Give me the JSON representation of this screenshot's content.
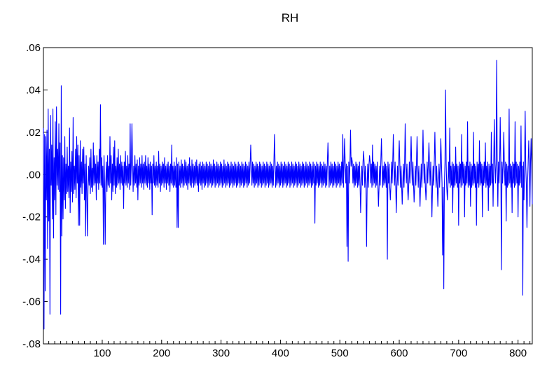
{
  "chart_data": {
    "type": "line",
    "title": "RH",
    "xlabel": "",
    "ylabel": "",
    "xlim": [
      1,
      824
    ],
    "ylim": [
      -0.08,
      0.06
    ],
    "grid": false,
    "legend": "none",
    "line_color": "#0000FF",
    "x_ticks": [
      100,
      200,
      300,
      400,
      500,
      600,
      700,
      800
    ],
    "x_tick_labels": [
      "100",
      "200",
      "300",
      "400",
      "500",
      "600",
      "700",
      "800"
    ],
    "y_ticks": [
      0.06,
      0.04,
      0.02,
      0.0,
      -0.02,
      -0.04,
      -0.06,
      -0.08
    ],
    "y_tick_labels": [
      ".06",
      ".04",
      ".02",
      ".00",
      "-.02",
      "-.04",
      "-.06",
      "-.08"
    ],
    "series": [
      {
        "x_start": 1,
        "x_step": 1,
        "values": [
          0.022,
          -0.073,
          0.019,
          -0.055,
          0.018,
          -0.012,
          0.021,
          -0.035,
          0.031,
          -0.022,
          0.012,
          -0.066,
          0.028,
          -0.005,
          0.014,
          -0.021,
          0.031,
          -0.03,
          0.008,
          -0.012,
          0.025,
          -0.019,
          0.032,
          -0.005,
          0.012,
          -0.007,
          0.024,
          -0.008,
          0.015,
          -0.066,
          0.042,
          -0.029,
          0.009,
          -0.021,
          0.008,
          -0.012,
          0.018,
          -0.016,
          0.005,
          -0.009,
          0.013,
          -0.008,
          0.004,
          -0.011,
          0.022,
          -0.018,
          0.006,
          -0.008,
          0.011,
          -0.013,
          0.027,
          -0.009,
          0.004,
          -0.007,
          0.012,
          -0.011,
          0.018,
          -0.004,
          0.014,
          -0.012,
          0.009,
          -0.024,
          0.016,
          -0.006,
          0.006,
          -0.009,
          0.012,
          -0.004,
          0.013,
          -0.012,
          0.005,
          -0.029,
          0.009,
          -0.008,
          0.012,
          -0.007,
          0.004,
          -0.005,
          0.008,
          -0.009,
          0.012,
          -0.006,
          0.003,
          -0.008,
          0.015,
          -0.005,
          0.009,
          -0.004,
          0.005,
          -0.012,
          0.009,
          -0.004,
          0.006,
          -0.007,
          0.012,
          -0.004,
          0.033,
          -0.005,
          0.008,
          -0.006,
          0.004,
          -0.033,
          0.009,
          -0.005,
          0.012,
          -0.004,
          0.006,
          -0.008,
          0.009,
          -0.005,
          0.004,
          -0.006,
          0.018,
          -0.004,
          0.009,
          -0.012,
          0.005,
          -0.008,
          0.013,
          -0.005,
          0.016,
          -0.009,
          0.004,
          -0.006,
          0.008,
          -0.005,
          0.012,
          -0.004,
          0.005,
          -0.007,
          0.009,
          -0.004,
          0.006,
          -0.005,
          0.004,
          -0.016,
          0.006,
          -0.004,
          0.011,
          -0.005,
          0.004,
          -0.006,
          0.009,
          -0.004,
          0.005,
          -0.007,
          0.024,
          -0.005,
          0.005,
          -0.004,
          0.006,
          -0.008,
          0.004,
          -0.005,
          0.009,
          -0.004,
          0.005,
          -0.006,
          0.007,
          -0.012,
          0.004,
          -0.005,
          0.008,
          -0.004,
          0.005,
          -0.006,
          0.009,
          -0.004,
          0.005,
          -0.007,
          0.006,
          -0.004,
          0.009,
          -0.005,
          0.004,
          -0.006,
          0.008,
          -0.004,
          0.005,
          -0.007,
          0.006,
          -0.004,
          0.004,
          -0.019,
          0.005,
          -0.004,
          0.009,
          -0.005,
          0.004,
          -0.006,
          0.006,
          -0.005,
          0.004,
          -0.006,
          0.011,
          -0.004,
          0.005,
          -0.008,
          0.004,
          -0.005,
          0.006,
          -0.004,
          0.005,
          -0.006,
          0.008,
          -0.004,
          0.004,
          -0.007,
          0.005,
          -0.004,
          0.006,
          -0.005,
          0.004,
          -0.008,
          0.005,
          -0.004,
          0.014,
          -0.005,
          0.004,
          -0.006,
          0.006,
          -0.005,
          0.004,
          -0.006,
          0.008,
          -0.025,
          0.005,
          -0.004,
          0.006,
          -0.005,
          0.004,
          -0.006,
          0.007,
          -0.004,
          0.005,
          -0.006,
          0.004,
          -0.005,
          0.007,
          -0.004,
          0.006,
          -0.005,
          0.004,
          -0.007,
          0.005,
          -0.004,
          0.008,
          -0.005,
          0.004,
          -0.006,
          0.007,
          -0.004,
          0.005,
          -0.006,
          0.004,
          -0.005,
          0.006,
          -0.004,
          0.007,
          -0.005,
          0.004,
          -0.008,
          0.005,
          -0.004,
          0.006,
          -0.005,
          0.004,
          -0.007,
          0.006,
          -0.004,
          0.005,
          -0.006,
          0.004,
          -0.005,
          0.006,
          -0.004,
          0.005,
          -0.006,
          0.004,
          -0.005,
          0.006,
          -0.004,
          0.005,
          -0.006,
          0.004,
          -0.005,
          0.007,
          -0.004,
          0.005,
          -0.006,
          0.004,
          -0.005,
          0.006,
          -0.004,
          0.005,
          -0.006,
          0.004,
          -0.005,
          0.006,
          -0.004,
          0.005,
          -0.006,
          0.004,
          -0.005,
          0.007,
          -0.004,
          0.005,
          -0.006,
          0.004,
          -0.005,
          0.006,
          -0.004,
          0.005,
          -0.006,
          0.004,
          -0.005,
          0.006,
          -0.004,
          0.005,
          -0.006,
          0.004,
          -0.005,
          0.006,
          -0.004,
          0.005,
          -0.006,
          0.004,
          -0.005,
          0.006,
          -0.004,
          0.005,
          -0.006,
          0.004,
          -0.005,
          0.006,
          -0.004,
          0.005,
          -0.006,
          0.004,
          -0.005,
          0.006,
          -0.004,
          0.005,
          -0.006,
          0.004,
          -0.005,
          0.006,
          -0.004,
          0.005,
          -0.006,
          0.004,
          -0.005,
          0.006,
          -0.004,
          0.005,
          -0.006,
          0.004,
          -0.005,
          0.006,
          -0.004,
          0.005,
          -0.006,
          0.004,
          -0.005,
          0.006,
          -0.004,
          0.005,
          -0.006,
          0.004,
          -0.005,
          0.006,
          -0.004,
          0.005,
          -0.006,
          0.004,
          -0.005,
          0.006,
          -0.004,
          0.005,
          -0.006,
          0.004,
          -0.005,
          0.006,
          -0.004,
          0.005,
          -0.006,
          0.004,
          -0.005,
          0.006,
          -0.004,
          0.005,
          -0.006,
          0.004,
          -0.005,
          0.006,
          -0.004,
          0.005,
          -0.006,
          0.004,
          -0.005,
          0.006,
          -0.004,
          0.005,
          -0.006,
          0.004,
          -0.005,
          0.006,
          -0.004,
          0.005,
          -0.006,
          0.004,
          -0.005,
          0.006,
          -0.004,
          0.005,
          -0.006,
          0.004,
          -0.005,
          0.006,
          -0.004,
          0.005,
          -0.006,
          0.004,
          -0.005,
          0.006,
          -0.004,
          0.005,
          -0.006,
          0.004,
          -0.005,
          0.006,
          -0.004,
          0.005,
          -0.006,
          0.004,
          -0.005,
          0.006,
          -0.004,
          0.005,
          -0.006,
          0.004,
          -0.005,
          0.006,
          -0.004,
          0.005,
          -0.006,
          0.004,
          -0.005,
          0.006,
          -0.004,
          0.005,
          -0.006,
          0.004,
          -0.005,
          0.006,
          -0.004,
          0.005,
          -0.006,
          0.004,
          -0.005,
          0.006,
          -0.004,
          0.005,
          -0.006,
          0.004,
          -0.005,
          0.006,
          -0.004,
          0.005,
          -0.006,
          0.004,
          -0.005,
          0.006,
          -0.004,
          0.005,
          -0.006,
          0.004,
          -0.005,
          0.006,
          -0.004,
          0.005,
          -0.006,
          0.004,
          -0.005,
          0.006,
          -0.004,
          0.005,
          -0.006,
          0.004,
          -0.005,
          0.006,
          -0.004,
          0.005,
          -0.006,
          0.004,
          -0.005,
          0.006,
          -0.004,
          0.005,
          -0.006,
          0.004,
          -0.005,
          0.006,
          -0.004,
          0.005,
          -0.006,
          0.004,
          -0.005,
          0.006,
          -0.004,
          0.005,
          -0.006,
          0.004,
          -0.005,
          0.006,
          -0.004,
          0.005,
          -0.006,
          0.004,
          -0.005,
          0.006,
          -0.004,
          0.005,
          -0.006,
          0.004,
          -0.005,
          0.006,
          -0.004,
          0.005,
          -0.006,
          0.004,
          -0.005,
          0.006,
          -0.004,
          0.005,
          -0.006,
          0.004,
          -0.005,
          0.006,
          -0.004,
          0.005,
          -0.006,
          0.004,
          -0.005,
          0.006,
          -0.004,
          0.005,
          -0.006,
          0.004,
          -0.005,
          0.006,
          -0.004,
          0.005,
          -0.006,
          0.004,
          -0.005,
          0.006,
          -0.004,
          0.005,
          -0.006,
          0.004,
          -0.005,
          0.006,
          -0.004,
          0.005,
          -0.006,
          0.004,
          -0.005,
          0.006,
          -0.004,
          0.005,
          -0.006,
          0.004,
          -0.005,
          0.006,
          -0.004,
          0.005,
          -0.006,
          0.004,
          -0.005,
          0.006,
          -0.004,
          0.005,
          -0.006,
          0.004,
          -0.005,
          0.006,
          -0.004,
          0.005,
          -0.006,
          0.004,
          -0.005,
          0.006,
          -0.004,
          0.005,
          -0.006,
          0.004,
          -0.005,
          0.006,
          -0.004,
          0.005,
          -0.006,
          0.004,
          -0.005,
          0.006,
          -0.004,
          0.005,
          -0.006,
          0.004,
          -0.005,
          0.006,
          -0.004,
          0.005,
          -0.006,
          0.004,
          -0.005,
          0.006,
          -0.004,
          0.005,
          -0.006,
          0.004,
          -0.005,
          0.006,
          -0.004,
          0.005,
          -0.006,
          0.004,
          -0.005,
          0.006,
          -0.004,
          0.005,
          -0.006,
          0.004,
          -0.005,
          0.006,
          -0.004,
          0.005,
          -0.006,
          0.004,
          -0.005,
          0.006,
          -0.004,
          0.005,
          -0.006,
          0.004,
          -0.005,
          0.006,
          -0.004,
          0.005,
          -0.006,
          0.004,
          -0.005,
          0.006,
          -0.004,
          0.005,
          -0.006,
          0.004,
          -0.005,
          0.006,
          -0.004,
          0.005,
          -0.006,
          0.004,
          -0.005,
          0.006,
          -0.004,
          0.005,
          -0.006,
          0.004,
          -0.005,
          0.006,
          -0.004,
          0.005,
          -0.006,
          0.004,
          -0.005,
          0.006,
          -0.004,
          0.005,
          -0.006,
          0.004,
          -0.005,
          0.006,
          -0.004,
          0.005,
          -0.006,
          0.004,
          -0.005,
          0.006,
          -0.004,
          0.005,
          -0.006,
          0.004,
          -0.005,
          0.006,
          -0.004,
          0.005,
          -0.006,
          0.004,
          -0.005,
          0.006,
          -0.004,
          0.005,
          -0.006,
          0.004,
          -0.005,
          0.006,
          -0.004,
          0.005,
          -0.006,
          0.004,
          -0.005,
          0.006,
          -0.004,
          0.005,
          -0.006,
          0.004,
          -0.005,
          0.006,
          -0.004,
          0.005,
          -0.006,
          0.004,
          -0.005,
          0.006,
          -0.004,
          0.005,
          -0.006,
          0.004,
          -0.005,
          0.006,
          -0.004,
          0.005,
          -0.006,
          0.004,
          -0.005,
          0.006,
          -0.004,
          0.005,
          -0.006,
          0.004,
          -0.005,
          0.006,
          -0.004,
          0.005,
          -0.006,
          0.004,
          -0.005,
          0.006,
          -0.004,
          0.005,
          -0.006,
          0.004,
          -0.005,
          0.006,
          -0.004,
          0.005,
          -0.006,
          0.004,
          -0.005,
          0.006,
          -0.004,
          0.005,
          -0.006,
          0.004,
          -0.005,
          0.006,
          -0.004,
          0.005,
          -0.006,
          0.004,
          -0.005,
          0.006,
          -0.004,
          0.005,
          -0.006,
          0.004,
          -0.005,
          0.006,
          -0.004,
          0.005,
          -0.006,
          0.004,
          -0.005,
          0.006,
          -0.004,
          0.005,
          -0.006,
          0.004,
          -0.005,
          0.006,
          -0.004,
          0.005,
          -0.006,
          0.004,
          -0.005,
          0.006,
          -0.004,
          0.005,
          -0.006,
          0.004,
          -0.005,
          0.006,
          -0.004,
          0.005,
          -0.006,
          0.004,
          -0.005,
          0.006,
          -0.004,
          0.005,
          -0.006,
          0.004,
          -0.005,
          0.006,
          -0.004,
          0.005,
          -0.006,
          0.004,
          -0.005,
          0.006,
          -0.004,
          0.005,
          -0.006,
          0.004,
          -0.005,
          0.006,
          -0.004,
          0.005,
          -0.006,
          0.004,
          -0.005,
          0.006,
          -0.004,
          0.005,
          -0.006,
          0.004,
          -0.005,
          0.006,
          -0.004,
          0.005,
          -0.006,
          0.004,
          -0.005,
          0.006,
          -0.004,
          0.005,
          -0.006
        ]
      }
    ],
    "overrides": {
      "60": -0.024,
      "75": -0.029,
      "105": -0.033,
      "150": 0.024,
      "228": -0.025,
      "350": 0.014,
      "390": 0.019,
      "458": -0.023,
      "480": 0.015,
      "505": 0.019,
      "508": 0.017,
      "512": -0.034,
      "514": -0.041,
      "518": 0.021,
      "520": 0.008,
      "535": -0.018,
      "540": 0.011,
      "545": -0.034,
      "550": 0.009,
      "555": 0.014,
      "565": -0.015,
      "570": 0.017,
      "580": -0.04,
      "585": -0.012,
      "590": 0.019,
      "595": -0.018,
      "600": 0.016,
      "605": -0.014,
      "610": 0.024,
      "615": -0.012,
      "620": 0.018,
      "625": -0.013,
      "630": 0.018,
      "635": -0.015,
      "640": 0.021,
      "645": -0.012,
      "650": 0.015,
      "655": -0.02,
      "660": 0.02,
      "665": -0.015,
      "670": 0.017,
      "673": -0.038,
      "675": -0.054,
      "678": 0.04,
      "681": -0.012,
      "685": 0.022,
      "690": -0.018,
      "695": 0.013,
      "700": -0.024,
      "705": 0.019,
      "710": -0.02,
      "715": 0.025,
      "720": -0.015,
      "725": 0.02,
      "730": -0.024,
      "735": 0.016,
      "740": -0.02,
      "745": 0.015,
      "750": -0.017,
      "755": 0.02,
      "758": -0.015,
      "760": 0.026,
      "764": 0.054,
      "766": -0.015,
      "770": 0.027,
      "772": -0.045,
      "776": 0.02,
      "780": -0.022,
      "785": 0.031,
      "790": -0.018,
      "795": 0.025,
      "800": -0.02,
      "805": 0.023,
      "808": -0.057,
      "810": -0.012,
      "812": 0.03,
      "815": -0.025,
      "818": 0.016,
      "820": -0.015,
      "822": 0.017,
      "824": -0.014
    }
  }
}
